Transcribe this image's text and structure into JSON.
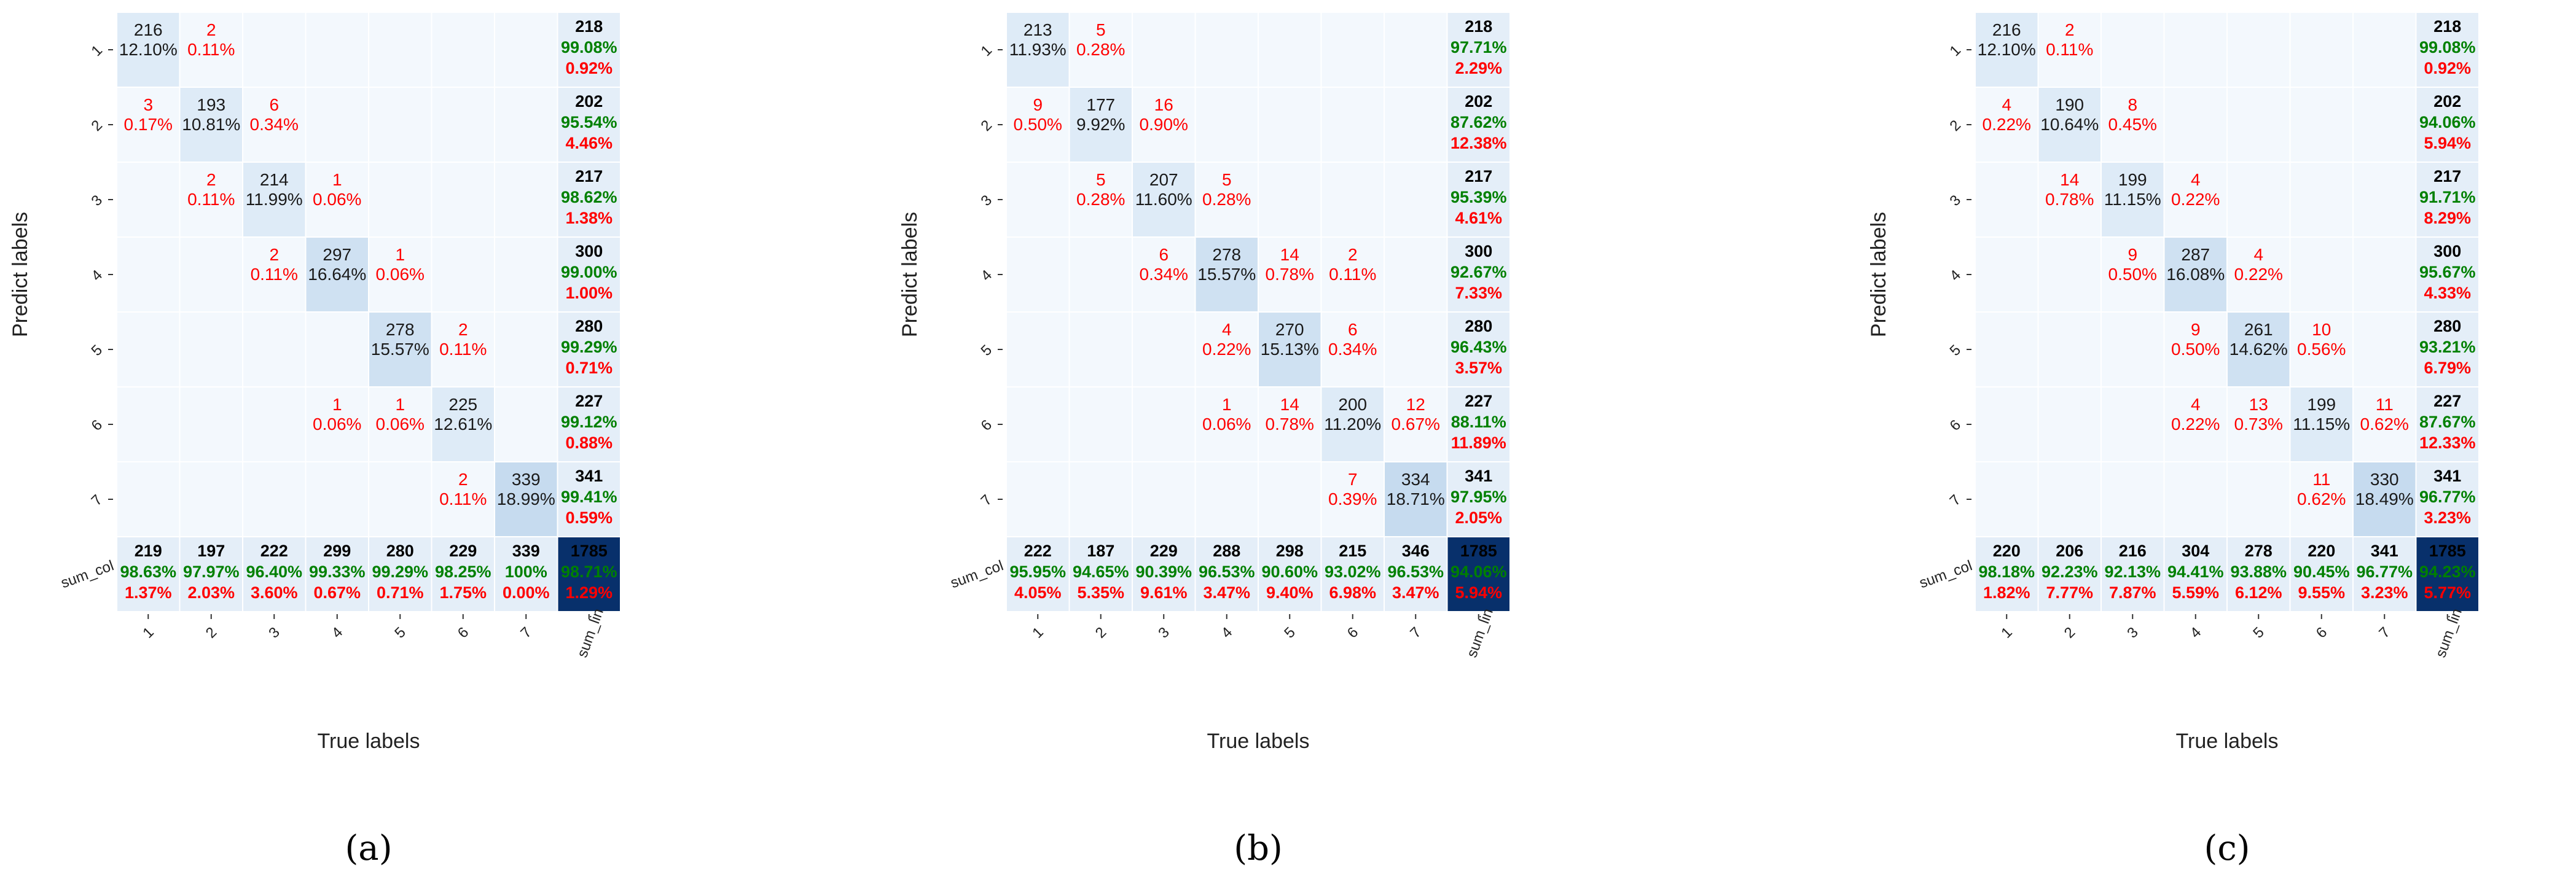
{
  "figure": {
    "axis_x_label": "True labels",
    "axis_y_label": "Predict labels",
    "row_tick_labels": [
      "1",
      "2",
      "3",
      "4",
      "5",
      "6",
      "7"
    ],
    "col_tick_labels": [
      "1",
      "2",
      "3",
      "4",
      "5",
      "6",
      "7",
      "sum_lin"
    ],
    "sum_row_label": "sum_col"
  },
  "colors": {
    "correct_text": "#008000",
    "error_text": "#ff0000",
    "count_text": "#1a1a1a",
    "offdiag_text": "#ff0000",
    "light_cell": "#f3f8fd",
    "diag_low": "#deebf7",
    "diag_high": "#c6dbef",
    "total_cell": "#08306b",
    "grid_line": "#ffffff"
  },
  "chart_data": [
    {
      "type": "heatmap",
      "title": "(a)",
      "xlabel": "True labels",
      "ylabel": "Predict labels",
      "matrix": [
        {
          "row": 1,
          "cells": [
            {
              "col": 1,
              "count": "216",
              "pct": "12.10%"
            },
            {
              "col": 2,
              "count": "2",
              "pct": "0.11%"
            }
          ],
          "sum": {
            "count": "218",
            "correct": "99.08%",
            "error": "0.92%"
          }
        },
        {
          "row": 2,
          "cells": [
            {
              "col": 1,
              "count": "3",
              "pct": "0.17%"
            },
            {
              "col": 2,
              "count": "193",
              "pct": "10.81%"
            },
            {
              "col": 3,
              "count": "6",
              "pct": "0.34%"
            }
          ],
          "sum": {
            "count": "202",
            "correct": "95.54%",
            "error": "4.46%"
          }
        },
        {
          "row": 3,
          "cells": [
            {
              "col": 2,
              "count": "2",
              "pct": "0.11%"
            },
            {
              "col": 3,
              "count": "214",
              "pct": "11.99%"
            },
            {
              "col": 4,
              "count": "1",
              "pct": "0.06%"
            }
          ],
          "sum": {
            "count": "217",
            "correct": "98.62%",
            "error": "1.38%"
          }
        },
        {
          "row": 4,
          "cells": [
            {
              "col": 3,
              "count": "2",
              "pct": "0.11%"
            },
            {
              "col": 4,
              "count": "297",
              "pct": "16.64%"
            },
            {
              "col": 5,
              "count": "1",
              "pct": "0.06%"
            }
          ],
          "sum": {
            "count": "300",
            "correct": "99.00%",
            "error": "1.00%"
          }
        },
        {
          "row": 5,
          "cells": [
            {
              "col": 5,
              "count": "278",
              "pct": "15.57%"
            },
            {
              "col": 6,
              "count": "2",
              "pct": "0.11%"
            }
          ],
          "sum": {
            "count": "280",
            "correct": "99.29%",
            "error": "0.71%"
          }
        },
        {
          "row": 6,
          "cells": [
            {
              "col": 4,
              "count": "1",
              "pct": "0.06%"
            },
            {
              "col": 5,
              "count": "1",
              "pct": "0.06%"
            },
            {
              "col": 6,
              "count": "225",
              "pct": "12.61%"
            }
          ],
          "sum": {
            "count": "227",
            "correct": "99.12%",
            "error": "0.88%"
          }
        },
        {
          "row": 7,
          "cells": [
            {
              "col": 6,
              "count": "2",
              "pct": "0.11%"
            },
            {
              "col": 7,
              "count": "339",
              "pct": "18.99%"
            }
          ],
          "sum": {
            "count": "341",
            "correct": "99.41%",
            "error": "0.59%"
          }
        }
      ],
      "sum_col": [
        {
          "count": "219",
          "correct": "98.63%",
          "error": "1.37%"
        },
        {
          "count": "197",
          "correct": "97.97%",
          "error": "2.03%"
        },
        {
          "count": "222",
          "correct": "96.40%",
          "error": "3.60%"
        },
        {
          "count": "299",
          "correct": "99.33%",
          "error": "0.67%"
        },
        {
          "count": "280",
          "correct": "99.29%",
          "error": "0.71%"
        },
        {
          "count": "229",
          "correct": "98.25%",
          "error": "1.75%"
        },
        {
          "count": "339",
          "correct": "100%",
          "error": "0.00%"
        }
      ],
      "total": {
        "count": "1785",
        "correct": "98.71%",
        "error": "1.29%"
      }
    },
    {
      "type": "heatmap",
      "title": "(b)",
      "xlabel": "True labels",
      "ylabel": "Predict labels",
      "matrix": [
        {
          "row": 1,
          "cells": [
            {
              "col": 1,
              "count": "213",
              "pct": "11.93%"
            },
            {
              "col": 2,
              "count": "5",
              "pct": "0.28%"
            }
          ],
          "sum": {
            "count": "218",
            "correct": "97.71%",
            "error": "2.29%"
          }
        },
        {
          "row": 2,
          "cells": [
            {
              "col": 1,
              "count": "9",
              "pct": "0.50%"
            },
            {
              "col": 2,
              "count": "177",
              "pct": "9.92%"
            },
            {
              "col": 3,
              "count": "16",
              "pct": "0.90%"
            }
          ],
          "sum": {
            "count": "202",
            "correct": "87.62%",
            "error": "12.38%"
          }
        },
        {
          "row": 3,
          "cells": [
            {
              "col": 2,
              "count": "5",
              "pct": "0.28%"
            },
            {
              "col": 3,
              "count": "207",
              "pct": "11.60%"
            },
            {
              "col": 4,
              "count": "5",
              "pct": "0.28%"
            }
          ],
          "sum": {
            "count": "217",
            "correct": "95.39%",
            "error": "4.61%"
          }
        },
        {
          "row": 4,
          "cells": [
            {
              "col": 3,
              "count": "6",
              "pct": "0.34%"
            },
            {
              "col": 4,
              "count": "278",
              "pct": "15.57%"
            },
            {
              "col": 5,
              "count": "14",
              "pct": "0.78%"
            },
            {
              "col": 6,
              "count": "2",
              "pct": "0.11%"
            }
          ],
          "sum": {
            "count": "300",
            "correct": "92.67%",
            "error": "7.33%"
          }
        },
        {
          "row": 5,
          "cells": [
            {
              "col": 4,
              "count": "4",
              "pct": "0.22%"
            },
            {
              "col": 5,
              "count": "270",
              "pct": "15.13%"
            },
            {
              "col": 6,
              "count": "6",
              "pct": "0.34%"
            }
          ],
          "sum": {
            "count": "280",
            "correct": "96.43%",
            "error": "3.57%"
          }
        },
        {
          "row": 6,
          "cells": [
            {
              "col": 4,
              "count": "1",
              "pct": "0.06%"
            },
            {
              "col": 5,
              "count": "14",
              "pct": "0.78%"
            },
            {
              "col": 6,
              "count": "200",
              "pct": "11.20%"
            },
            {
              "col": 7,
              "count": "12",
              "pct": "0.67%"
            }
          ],
          "sum": {
            "count": "227",
            "correct": "88.11%",
            "error": "11.89%"
          }
        },
        {
          "row": 7,
          "cells": [
            {
              "col": 6,
              "count": "7",
              "pct": "0.39%"
            },
            {
              "col": 7,
              "count": "334",
              "pct": "18.71%"
            }
          ],
          "sum": {
            "count": "341",
            "correct": "97.95%",
            "error": "2.05%"
          }
        }
      ],
      "sum_col": [
        {
          "count": "222",
          "correct": "95.95%",
          "error": "4.05%"
        },
        {
          "count": "187",
          "correct": "94.65%",
          "error": "5.35%"
        },
        {
          "count": "229",
          "correct": "90.39%",
          "error": "9.61%"
        },
        {
          "count": "288",
          "correct": "96.53%",
          "error": "3.47%"
        },
        {
          "count": "298",
          "correct": "90.60%",
          "error": "9.40%"
        },
        {
          "count": "215",
          "correct": "93.02%",
          "error": "6.98%"
        },
        {
          "count": "346",
          "correct": "96.53%",
          "error": "3.47%"
        }
      ],
      "total": {
        "count": "1785",
        "correct": "94.06%",
        "error": "5.94%"
      }
    },
    {
      "type": "heatmap",
      "title": "(c)",
      "xlabel": "True labels",
      "ylabel": "Predict labels",
      "matrix": [
        {
          "row": 1,
          "cells": [
            {
              "col": 1,
              "count": "216",
              "pct": "12.10%"
            },
            {
              "col": 2,
              "count": "2",
              "pct": "0.11%"
            }
          ],
          "sum": {
            "count": "218",
            "correct": "99.08%",
            "error": "0.92%"
          }
        },
        {
          "row": 2,
          "cells": [
            {
              "col": 1,
              "count": "4",
              "pct": "0.22%"
            },
            {
              "col": 2,
              "count": "190",
              "pct": "10.64%"
            },
            {
              "col": 3,
              "count": "8",
              "pct": "0.45%"
            }
          ],
          "sum": {
            "count": "202",
            "correct": "94.06%",
            "error": "5.94%"
          }
        },
        {
          "row": 3,
          "cells": [
            {
              "col": 2,
              "count": "14",
              "pct": "0.78%"
            },
            {
              "col": 3,
              "count": "199",
              "pct": "11.15%"
            },
            {
              "col": 4,
              "count": "4",
              "pct": "0.22%"
            }
          ],
          "sum": {
            "count": "217",
            "correct": "91.71%",
            "error": "8.29%"
          }
        },
        {
          "row": 4,
          "cells": [
            {
              "col": 3,
              "count": "9",
              "pct": "0.50%"
            },
            {
              "col": 4,
              "count": "287",
              "pct": "16.08%"
            },
            {
              "col": 5,
              "count": "4",
              "pct": "0.22%"
            }
          ],
          "sum": {
            "count": "300",
            "correct": "95.67%",
            "error": "4.33%"
          }
        },
        {
          "row": 5,
          "cells": [
            {
              "col": 4,
              "count": "9",
              "pct": "0.50%"
            },
            {
              "col": 5,
              "count": "261",
              "pct": "14.62%"
            },
            {
              "col": 6,
              "count": "10",
              "pct": "0.56%"
            }
          ],
          "sum": {
            "count": "280",
            "correct": "93.21%",
            "error": "6.79%"
          }
        },
        {
          "row": 6,
          "cells": [
            {
              "col": 4,
              "count": "4",
              "pct": "0.22%"
            },
            {
              "col": 5,
              "count": "13",
              "pct": "0.73%"
            },
            {
              "col": 6,
              "count": "199",
              "pct": "11.15%"
            },
            {
              "col": 7,
              "count": "11",
              "pct": "0.62%"
            }
          ],
          "sum": {
            "count": "227",
            "correct": "87.67%",
            "error": "12.33%"
          }
        },
        {
          "row": 7,
          "cells": [
            {
              "col": 6,
              "count": "11",
              "pct": "0.62%"
            },
            {
              "col": 7,
              "count": "330",
              "pct": "18.49%"
            }
          ],
          "sum": {
            "count": "341",
            "correct": "96.77%",
            "error": "3.23%"
          }
        }
      ],
      "sum_col": [
        {
          "count": "220",
          "correct": "98.18%",
          "error": "1.82%"
        },
        {
          "count": "206",
          "correct": "92.23%",
          "error": "7.77%"
        },
        {
          "count": "216",
          "correct": "92.13%",
          "error": "7.87%"
        },
        {
          "count": "304",
          "correct": "94.41%",
          "error": "5.59%"
        },
        {
          "count": "278",
          "correct": "93.88%",
          "error": "6.12%"
        },
        {
          "count": "220",
          "correct": "90.45%",
          "error": "9.55%"
        },
        {
          "count": "341",
          "correct": "96.77%",
          "error": "3.23%"
        }
      ],
      "total": {
        "count": "1785",
        "correct": "94.23%",
        "error": "5.77%"
      }
    }
  ]
}
